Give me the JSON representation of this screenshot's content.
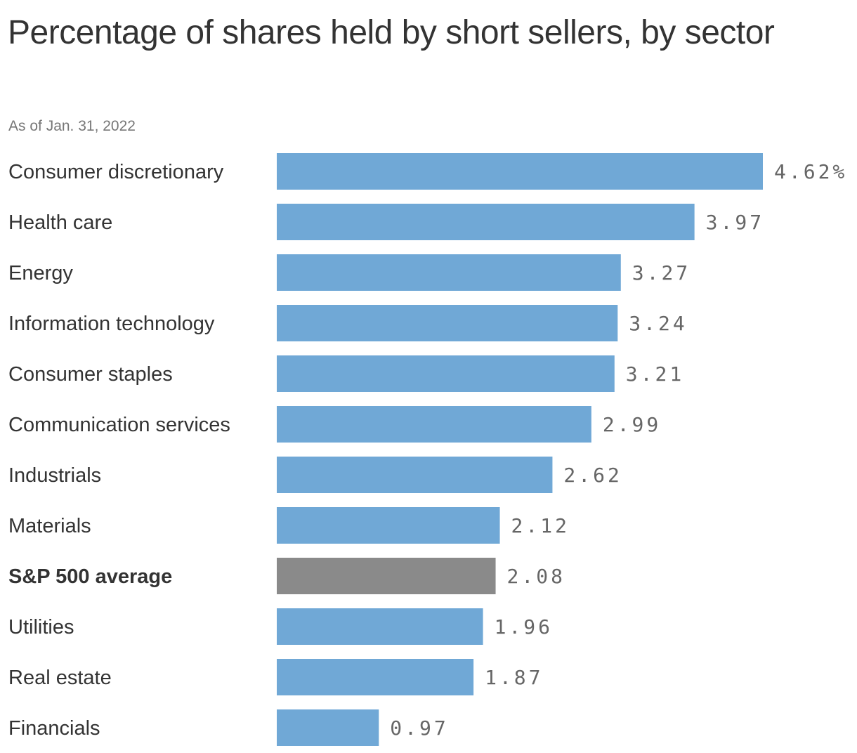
{
  "title": "Percentage of shares held by short sellers, by sector",
  "subtitle": "As of Jan. 31, 2022",
  "colors": {
    "bar": "#70a8d6",
    "highlight_bar": "#8a8a8a",
    "text": "#333333",
    "value_text": "#666666"
  },
  "chart_data": {
    "type": "bar",
    "orientation": "horizontal",
    "title": "Percentage of shares held by short sellers, by sector",
    "subtitle": "As of Jan. 31, 2022",
    "xlabel": "",
    "ylabel": "",
    "xlim": [
      0,
      4.62
    ],
    "grid": false,
    "legend": "none",
    "value_suffix_first": "%",
    "categories": [
      "Consumer discretionary",
      "Health care",
      "Energy",
      "Information technology",
      "Consumer staples",
      "Communication services",
      "Industrials",
      "Materials",
      "S&P 500 average",
      "Utilities",
      "Real estate",
      "Financials"
    ],
    "values": [
      4.62,
      3.97,
      3.27,
      3.24,
      3.21,
      2.99,
      2.62,
      2.12,
      2.08,
      1.96,
      1.87,
      0.97
    ],
    "value_labels": [
      "4.62%",
      "3.97",
      "3.27",
      "3.24",
      "3.21",
      "2.99",
      "2.62",
      "2.12",
      "2.08",
      "1.96",
      "1.87",
      "0.97"
    ],
    "highlight": [
      "S&P 500 average"
    ]
  }
}
